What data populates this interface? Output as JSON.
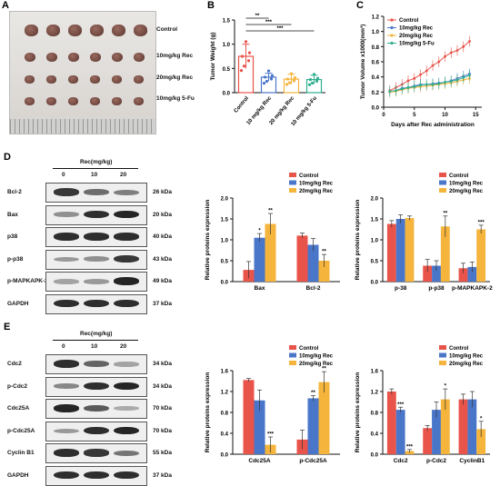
{
  "panelA": {
    "letter": "A",
    "rowLabels": [
      "Control",
      "10mg/kg Rec",
      "20mg/kg Rec",
      "10mg/kg 5-Fu"
    ],
    "tumorCounts": [
      6,
      6,
      6,
      6
    ]
  },
  "panelB": {
    "letter": "B",
    "chart_data": {
      "type": "bar",
      "ylabel": "Tumor Weight (g)",
      "ylim": [
        0,
        1.5
      ],
      "yticks": [
        "0.0",
        "0.5",
        "1.0",
        "1.5"
      ],
      "categories": [
        "Control",
        "10 mg/kg Rec",
        "20 mg/kg Rec",
        "10 mg/kg 5-Fu"
      ],
      "values": [
        0.75,
        0.32,
        0.28,
        0.27
      ],
      "errors": [
        0.25,
        0.08,
        0.1,
        0.09
      ],
      "colors": [
        "#e8534a",
        "#4a76c9",
        "#f5b43b",
        "#2fae8f"
      ],
      "significance": [
        {
          "from": 0,
          "to": 1,
          "label": "**"
        },
        {
          "from": 0,
          "to": 2,
          "label": "***"
        },
        {
          "from": 0,
          "to": 3,
          "label": "***"
        }
      ]
    }
  },
  "panelC": {
    "letter": "C",
    "chart_data": {
      "type": "line",
      "xlabel": "Days after Rec administration",
      "ylabel": "Tumor Volume x1000(mm³)",
      "xlim": [
        0,
        16
      ],
      "ylim": [
        0,
        1.2
      ],
      "xticks": [
        "0",
        "5",
        "10",
        "15"
      ],
      "yticks": [
        "0.0",
        "0.2",
        "0.4",
        "0.6",
        "0.8",
        "1.0",
        "1.2"
      ],
      "x": [
        1,
        2,
        3,
        4,
        5,
        6,
        7,
        8,
        9,
        10,
        11,
        12,
        13,
        14
      ],
      "series": [
        {
          "name": "Control",
          "color": "#e8534a",
          "values": [
            0.22,
            0.26,
            0.3,
            0.35,
            0.38,
            0.43,
            0.48,
            0.55,
            0.6,
            0.67,
            0.72,
            0.75,
            0.8,
            0.87
          ]
        },
        {
          "name": "10mg/kg Rec",
          "color": "#4a76c9",
          "values": [
            0.2,
            0.22,
            0.25,
            0.26,
            0.28,
            0.3,
            0.3,
            0.31,
            0.32,
            0.33,
            0.35,
            0.38,
            0.41,
            0.44
          ]
        },
        {
          "name": "20mg/kg Rec",
          "color": "#f5b43b",
          "values": [
            0.2,
            0.21,
            0.23,
            0.25,
            0.26,
            0.27,
            0.28,
            0.29,
            0.3,
            0.31,
            0.32,
            0.34,
            0.36,
            0.38
          ]
        },
        {
          "name": "10mg/kg 5-Fu",
          "color": "#2fae8f",
          "values": [
            0.21,
            0.22,
            0.24,
            0.26,
            0.27,
            0.29,
            0.3,
            0.3,
            0.31,
            0.33,
            0.34,
            0.36,
            0.39,
            0.42
          ]
        }
      ]
    }
  },
  "panelD": {
    "letter": "D",
    "header": "Rec(mg/kg)",
    "lanes": [
      "0",
      "10",
      "20"
    ],
    "blots": [
      {
        "protein": "Bcl-2",
        "kda": "26 kDa",
        "intensity": [
          0.85,
          0.55,
          0.45
        ]
      },
      {
        "protein": "Bax",
        "kda": "20 kDa",
        "intensity": [
          0.35,
          0.9,
          0.95
        ]
      },
      {
        "protein": "p38",
        "kda": "40 kDa",
        "intensity": [
          0.9,
          0.9,
          0.9
        ]
      },
      {
        "protein": "p-p38",
        "kda": "43 kDa",
        "intensity": [
          0.3,
          0.35,
          0.85
        ]
      },
      {
        "protein": "p-MAPKAPK-2",
        "kda": "49 kDa",
        "intensity": [
          0.25,
          0.3,
          0.95
        ]
      },
      {
        "protein": "GAPDH",
        "kda": "37 kDa",
        "intensity": [
          0.9,
          0.9,
          0.9
        ]
      }
    ],
    "chart1": {
      "type": "bar",
      "ylabel": "Relative proteins expression",
      "ylim": [
        0,
        2.0
      ],
      "yticks": [
        "0.0",
        "0.5",
        "1.0",
        "1.5",
        "2.0"
      ],
      "categories": [
        "Bax",
        "Bcl-2"
      ],
      "series": [
        {
          "name": "Control",
          "color": "#e8534a",
          "values": [
            0.28,
            1.1
          ],
          "errors": [
            0.2,
            0.06
          ]
        },
        {
          "name": "10mg/kg Rec",
          "color": "#4a76c9",
          "values": [
            1.05,
            0.88
          ],
          "errors": [
            0.1,
            0.15
          ]
        },
        {
          "name": "20mg/kg Rec",
          "color": "#f5b43b",
          "values": [
            1.38,
            0.5
          ],
          "errors": [
            0.25,
            0.15
          ]
        }
      ],
      "stars": [
        [
          "",
          "*",
          "**"
        ],
        [
          "",
          "",
          "**"
        ]
      ]
    },
    "chart2": {
      "type": "bar",
      "ylabel": "Relative proteins expression",
      "ylim": [
        0,
        2.0
      ],
      "yticks": [
        "0.0",
        "0.5",
        "1.0",
        "1.5",
        "2.0"
      ],
      "categories": [
        "p-38",
        "p-p38",
        "p-MAPKAPK-2"
      ],
      "series": [
        {
          "name": "Control",
          "color": "#e8534a",
          "values": [
            1.38,
            0.38,
            0.32
          ],
          "errors": [
            0.08,
            0.15,
            0.12
          ]
        },
        {
          "name": "10mg/kg Rec",
          "color": "#4a76c9",
          "values": [
            1.5,
            0.38,
            0.35
          ],
          "errors": [
            0.1,
            0.12,
            0.12
          ]
        },
        {
          "name": "20mg/kg Rec",
          "color": "#f5b43b",
          "values": [
            1.52,
            1.32,
            1.25
          ],
          "errors": [
            0.05,
            0.25,
            0.1
          ]
        }
      ],
      "stars": [
        [
          "",
          "",
          ""
        ],
        [
          "",
          "",
          "**"
        ],
        [
          "",
          "",
          "***"
        ]
      ]
    }
  },
  "panelE": {
    "letter": "E",
    "header": "Rec(mg/kg)",
    "lanes": [
      "0",
      "10",
      "20"
    ],
    "blots": [
      {
        "protein": "Cdc2",
        "kda": "34 kDa",
        "intensity": [
          0.9,
          0.6,
          0.25
        ]
      },
      {
        "protein": "p-Cdc2",
        "kda": "34 kDa",
        "intensity": [
          0.4,
          0.9,
          0.95
        ]
      },
      {
        "protein": "Cdc25A",
        "kda": "70 kDa",
        "intensity": [
          0.95,
          0.65,
          0.2
        ]
      },
      {
        "protein": "p-Cdc25A",
        "kda": "70 kDa",
        "intensity": [
          0.3,
          0.9,
          0.95
        ]
      },
      {
        "protein": "Cyclin B1",
        "kda": "55 kDa",
        "intensity": [
          0.9,
          0.85,
          0.5
        ]
      },
      {
        "protein": "GAPDH",
        "kda": "37 kDa",
        "intensity": [
          0.9,
          0.9,
          0.9
        ]
      }
    ],
    "chart1": {
      "type": "bar",
      "ylabel": "Relative proteins expression",
      "ylim": [
        0,
        1.6
      ],
      "yticks": [
        "0.0",
        "0.4",
        "0.8",
        "1.2",
        "1.6"
      ],
      "categories": [
        "Cdc25A",
        "p-Cdc25A"
      ],
      "series": [
        {
          "name": "Control",
          "color": "#e8534a",
          "values": [
            1.42,
            0.28
          ],
          "errors": [
            0.03,
            0.18
          ]
        },
        {
          "name": "10mg/kg Rec",
          "color": "#4a76c9",
          "values": [
            1.03,
            1.07
          ],
          "errors": [
            0.2,
            0.05
          ]
        },
        {
          "name": "20mg/kg Rec",
          "color": "#f5b43b",
          "values": [
            0.18,
            1.38
          ],
          "errors": [
            0.15,
            0.2
          ]
        }
      ],
      "stars": [
        [
          "",
          "",
          "***"
        ],
        [
          "",
          "**",
          "**"
        ]
      ]
    },
    "chart2": {
      "type": "bar",
      "ylabel": "Relative proteins expression",
      "ylim": [
        0,
        1.6
      ],
      "yticks": [
        "0.0",
        "0.4",
        "0.8",
        "1.2",
        "1.6"
      ],
      "categories": [
        "Cdc2",
        "p-Cdc2",
        "CyclinB1"
      ],
      "series": [
        {
          "name": "Control",
          "color": "#e8534a",
          "values": [
            1.2,
            0.5,
            1.05
          ],
          "errors": [
            0.05,
            0.05,
            0.1
          ]
        },
        {
          "name": "10mg/kg Rec",
          "color": "#4a76c9",
          "values": [
            0.85,
            0.85,
            1.05
          ],
          "errors": [
            0.05,
            0.15,
            0.15
          ]
        },
        {
          "name": "20mg/kg Rec",
          "color": "#f5b43b",
          "values": [
            0.06,
            1.05,
            0.48
          ],
          "errors": [
            0.03,
            0.2,
            0.15
          ]
        }
      ],
      "stars": [
        [
          "",
          "***",
          "***"
        ],
        [
          "",
          "",
          "*"
        ],
        [
          "",
          "",
          "*"
        ]
      ]
    }
  }
}
